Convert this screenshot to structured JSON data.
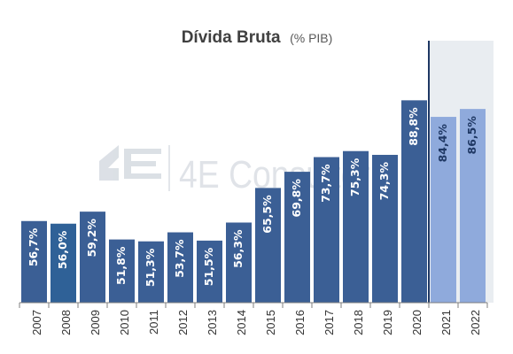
{
  "chart_data": {
    "type": "bar",
    "title": "Dívida Bruta",
    "subtitle": "(% PIB)",
    "categories": [
      "2007",
      "2008",
      "2009",
      "2010",
      "2011",
      "2012",
      "2013",
      "2014",
      "2015",
      "2016",
      "2017",
      "2018",
      "2019",
      "2020",
      "2021",
      "2022"
    ],
    "values": [
      56.7,
      56.0,
      59.2,
      51.8,
      51.3,
      53.7,
      51.5,
      56.3,
      65.5,
      69.8,
      73.7,
      75.3,
      74.3,
      88.8,
      84.4,
      86.5
    ],
    "value_labels": [
      "56,7%",
      "56,0%",
      "59,2%",
      "51,8%",
      "51,3%",
      "53,7%",
      "51,5%",
      "56,3%",
      "65,5%",
      "69,8%",
      "73,7%",
      "75,3%",
      "74,3%",
      "88,8%",
      "84,4%",
      "86,5%"
    ],
    "forecast_categories": [
      "2021",
      "2022"
    ],
    "ylim": [
      35,
      95
    ],
    "grid": false,
    "legend": "none",
    "colors": {
      "actual": "#3b5f95",
      "actual_alt": "#2f6197",
      "forecast": "#8faadc",
      "forecast_region": "#e9edf1",
      "forecast_divider": "#1f3864",
      "label_actual": "#ffffff",
      "label_forecast": "#1f3864"
    },
    "watermark": "4E Consultoria"
  }
}
